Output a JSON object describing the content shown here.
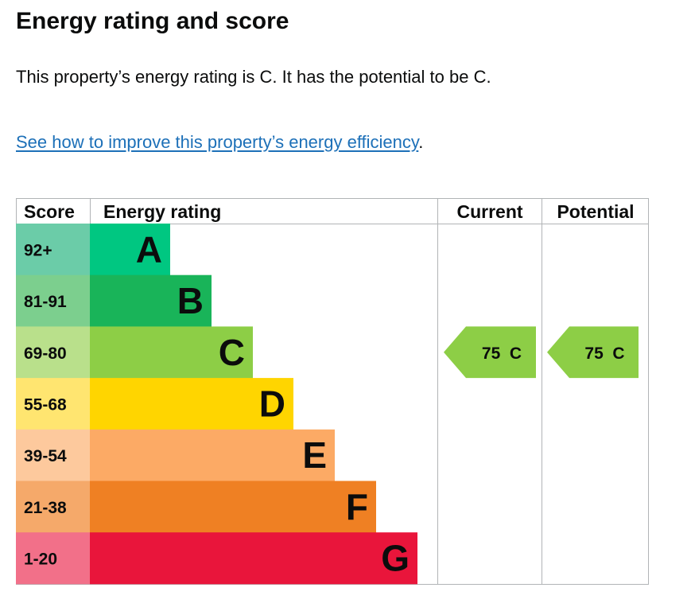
{
  "heading": "Energy rating and score",
  "summary": "This property’s energy rating is C. It has the potential to be C.",
  "link": {
    "text": "See how to improve this property’s energy efficiency",
    "suffix": "."
  },
  "chart_data": {
    "type": "table",
    "columns": {
      "score": "Score",
      "rating": "Energy rating",
      "current": "Current",
      "potential": "Potential"
    },
    "bands": [
      {
        "letter": "A",
        "score": "92+",
        "color": "#00c781",
        "score_color": "#6bcca8"
      },
      {
        "letter": "B",
        "score": "81-91",
        "color": "#19b459",
        "score_color": "#7ccf8e"
      },
      {
        "letter": "C",
        "score": "69-80",
        "color": "#8dce46",
        "score_color": "#b9e08b"
      },
      {
        "letter": "D",
        "score": "55-68",
        "color": "#ffd500",
        "score_color": "#ffe570"
      },
      {
        "letter": "E",
        "score": "39-54",
        "color": "#fcaa65",
        "score_color": "#fdc99d"
      },
      {
        "letter": "F",
        "score": "21-38",
        "color": "#ef8023",
        "score_color": "#f5a96a"
      },
      {
        "letter": "G",
        "score": "1-20",
        "color": "#e9153b",
        "score_color": "#f27089"
      }
    ],
    "current": {
      "score": 75,
      "letter": "C",
      "label": "75  C",
      "color": "#8dce46"
    },
    "potential": {
      "score": 75,
      "letter": "C",
      "label": "75  C",
      "color": "#8dce46"
    }
  }
}
